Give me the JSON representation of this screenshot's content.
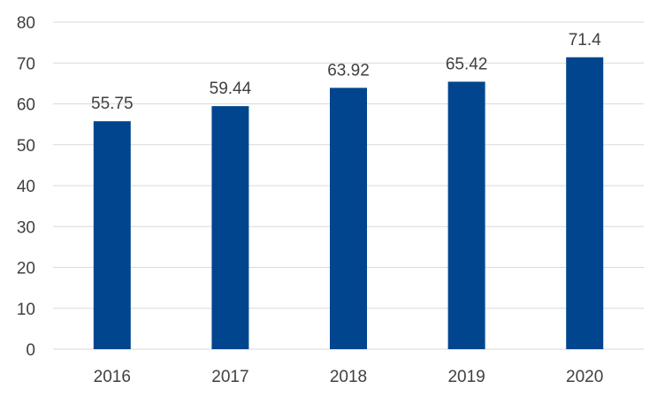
{
  "chart_data": {
    "type": "bar",
    "categories": [
      "2016",
      "2017",
      "2018",
      "2019",
      "2020"
    ],
    "series": [
      {
        "values": [
          55.75,
          59.44,
          63.92,
          65.42,
          71.4
        ]
      }
    ],
    "data_labels": [
      "55.75",
      "59.44",
      "63.92",
      "65.42",
      "71.4"
    ],
    "y_ticks": [
      "0",
      "10",
      "20",
      "30",
      "40",
      "50",
      "60",
      "70",
      "80"
    ],
    "ylim": [
      0,
      80
    ],
    "grid": true,
    "legend": "none",
    "title": "",
    "xlabel": "",
    "ylabel": "",
    "colors": {
      "bar": "#00458E",
      "grid": "#D9D9D9",
      "text": "#404040"
    }
  }
}
